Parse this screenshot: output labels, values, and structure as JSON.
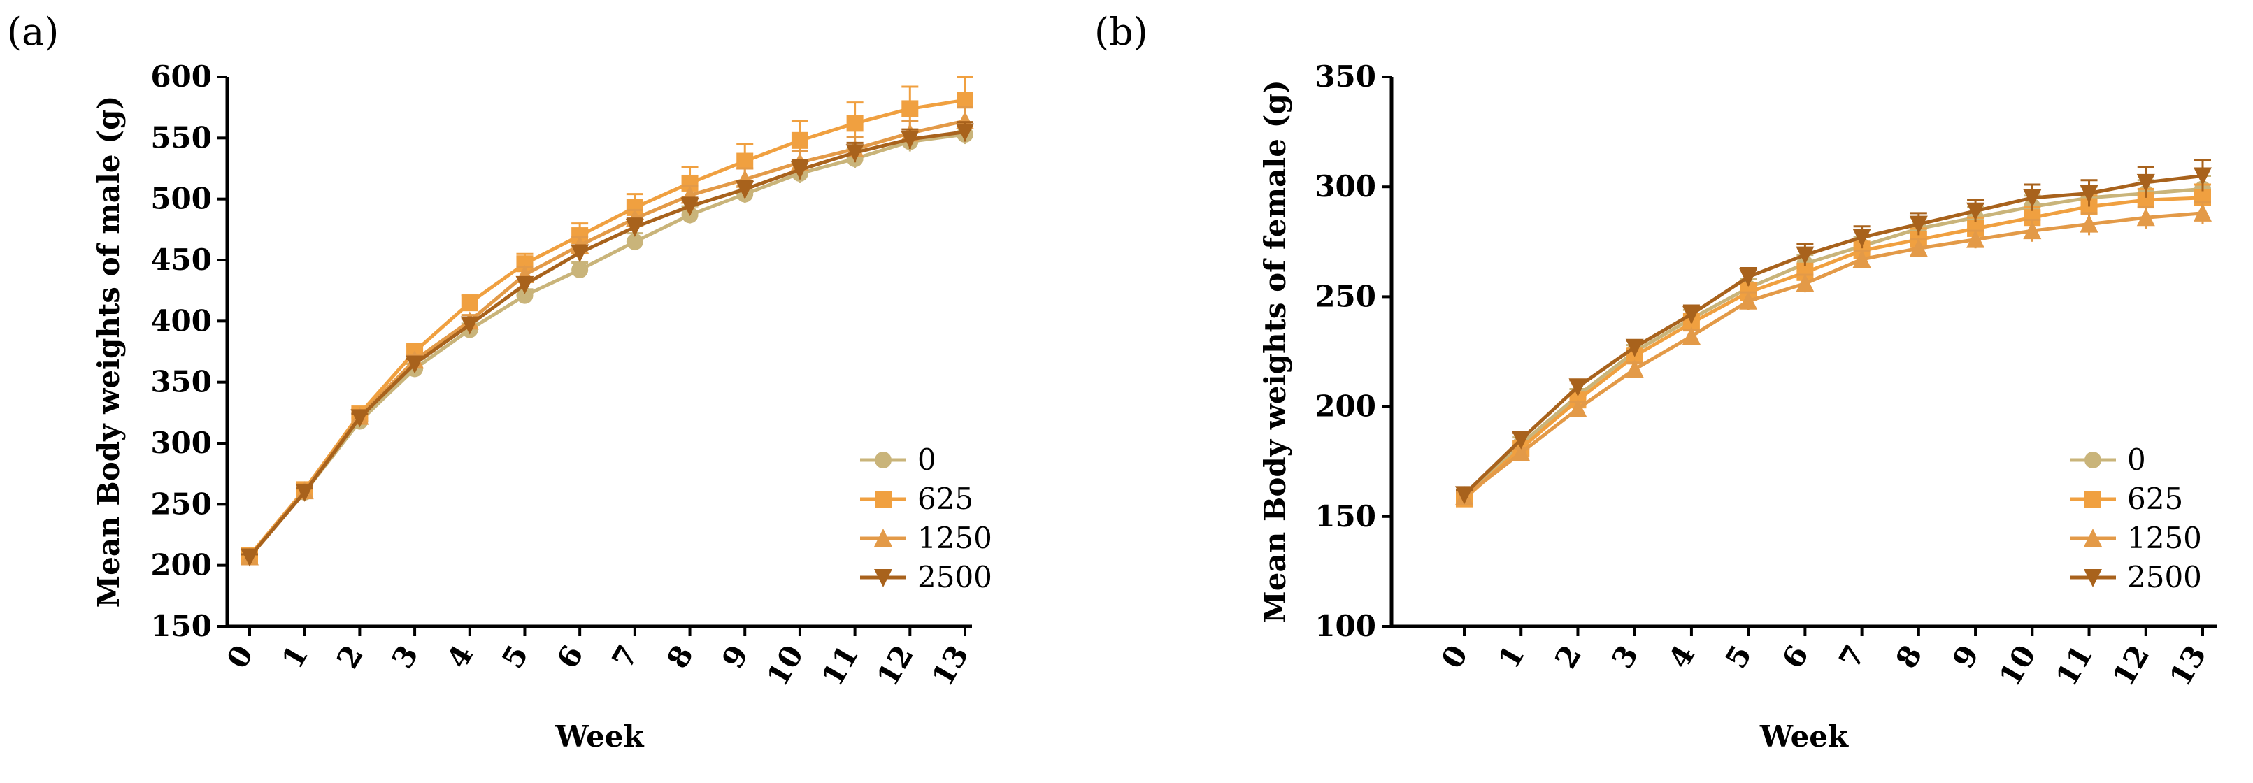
{
  "figure": {
    "panel_labels": [
      "(a)",
      "(b)"
    ]
  },
  "chart_data": [
    {
      "type": "line",
      "panel": "(a)",
      "title": "",
      "xlabel": "Week",
      "ylabel": "Mean Body weights of male (g)",
      "x": [
        0,
        1,
        2,
        3,
        4,
        5,
        6,
        7,
        8,
        9,
        10,
        11,
        12,
        13
      ],
      "x_tick_labels": [
        "0",
        "1",
        "2",
        "3",
        "4",
        "5",
        "6",
        "7",
        "8",
        "9",
        "10",
        "11",
        "12",
        "13"
      ],
      "ylim": [
        150,
        600
      ],
      "y_ticks": [
        150,
        200,
        250,
        300,
        350,
        400,
        450,
        500,
        550,
        600
      ],
      "y_tick_labels": [
        "150",
        "200",
        "250",
        "300",
        "350",
        "400",
        "450",
        "500",
        "550",
        "600"
      ],
      "legend_position": "bottom-right",
      "grid": false,
      "series": [
        {
          "name": "0",
          "marker": "circle",
          "color": "#c9b47a",
          "values": [
            207,
            260,
            318,
            361,
            393,
            421,
            442,
            465,
            487,
            504,
            521,
            533,
            547,
            553
          ],
          "errors": [
            2,
            3,
            3,
            4,
            5,
            5,
            6,
            7,
            7,
            7,
            8,
            8,
            8,
            8
          ]
        },
        {
          "name": "625",
          "marker": "square",
          "color": "#f0a040",
          "values": [
            208,
            262,
            324,
            375,
            415,
            447,
            470,
            493,
            513,
            531,
            548,
            562,
            574,
            581
          ],
          "errors": [
            2,
            3,
            4,
            5,
            6,
            8,
            10,
            11,
            13,
            14,
            16,
            17,
            18,
            19
          ]
        },
        {
          "name": "1250",
          "marker": "triangle-up",
          "color": "#e39a48",
          "values": [
            207,
            261,
            322,
            368,
            400,
            438,
            462,
            484,
            503,
            516,
            530,
            541,
            554,
            564
          ],
          "errors": [
            2,
            3,
            3,
            4,
            5,
            6,
            7,
            7,
            8,
            9,
            9,
            10,
            10,
            11
          ]
        },
        {
          "name": "2500",
          "marker": "triangle-down",
          "color": "#a8621c",
          "values": [
            207,
            260,
            321,
            365,
            397,
            430,
            456,
            477,
            494,
            508,
            524,
            538,
            549,
            555
          ],
          "errors": [
            2,
            3,
            3,
            4,
            5,
            6,
            6,
            7,
            7,
            7,
            8,
            8,
            8,
            8
          ]
        }
      ]
    },
    {
      "type": "line",
      "panel": "(b)",
      "title": "",
      "xlabel": "Week",
      "ylabel": "Mean Body weights of female (g)",
      "x": [
        0,
        1,
        2,
        3,
        4,
        5,
        6,
        7,
        8,
        9,
        10,
        11,
        12,
        13
      ],
      "x_tick_labels": [
        "0",
        "1",
        "2",
        "3",
        "4",
        "5",
        "6",
        "7",
        "8",
        "9",
        "10",
        "11",
        "12",
        "13"
      ],
      "ylim": [
        100,
        350
      ],
      "y_ticks": [
        100,
        150,
        200,
        250,
        300,
        350
      ],
      "y_tick_labels": [
        "100",
        "150",
        "200",
        "250",
        "300",
        "350"
      ],
      "legend_position": "bottom-right",
      "grid": false,
      "series": [
        {
          "name": "0",
          "marker": "circle",
          "color": "#c9b47a",
          "values": [
            160,
            183,
            205,
            225,
            240,
            254,
            265,
            273,
            281,
            286,
            291,
            295,
            297,
            299
          ],
          "errors": [
            2,
            3,
            3,
            3,
            4,
            4,
            4,
            4,
            5,
            5,
            5,
            5,
            6,
            6
          ]
        },
        {
          "name": "625",
          "marker": "square",
          "color": "#f0a040",
          "values": [
            158,
            181,
            203,
            223,
            238,
            252,
            261,
            271,
            276,
            281,
            286,
            291,
            294,
            295
          ],
          "errors": [
            2,
            3,
            3,
            3,
            4,
            4,
            4,
            4,
            5,
            5,
            5,
            5,
            5,
            6
          ]
        },
        {
          "name": "1250",
          "marker": "triangle-up",
          "color": "#e39a48",
          "values": [
            159,
            179,
            199,
            217,
            232,
            248,
            256,
            267,
            272,
            276,
            280,
            283,
            286,
            288
          ],
          "errors": [
            2,
            2,
            3,
            3,
            3,
            4,
            4,
            4,
            4,
            4,
            5,
            5,
            5,
            5
          ]
        },
        {
          "name": "2500",
          "marker": "triangle-down",
          "color": "#a8621c",
          "values": [
            160,
            185,
            209,
            227,
            242,
            259,
            269,
            277,
            283,
            289,
            295,
            297,
            302,
            305
          ],
          "errors": [
            2,
            3,
            3,
            3,
            4,
            4,
            5,
            5,
            5,
            5,
            6,
            6,
            7,
            7
          ]
        }
      ]
    }
  ]
}
